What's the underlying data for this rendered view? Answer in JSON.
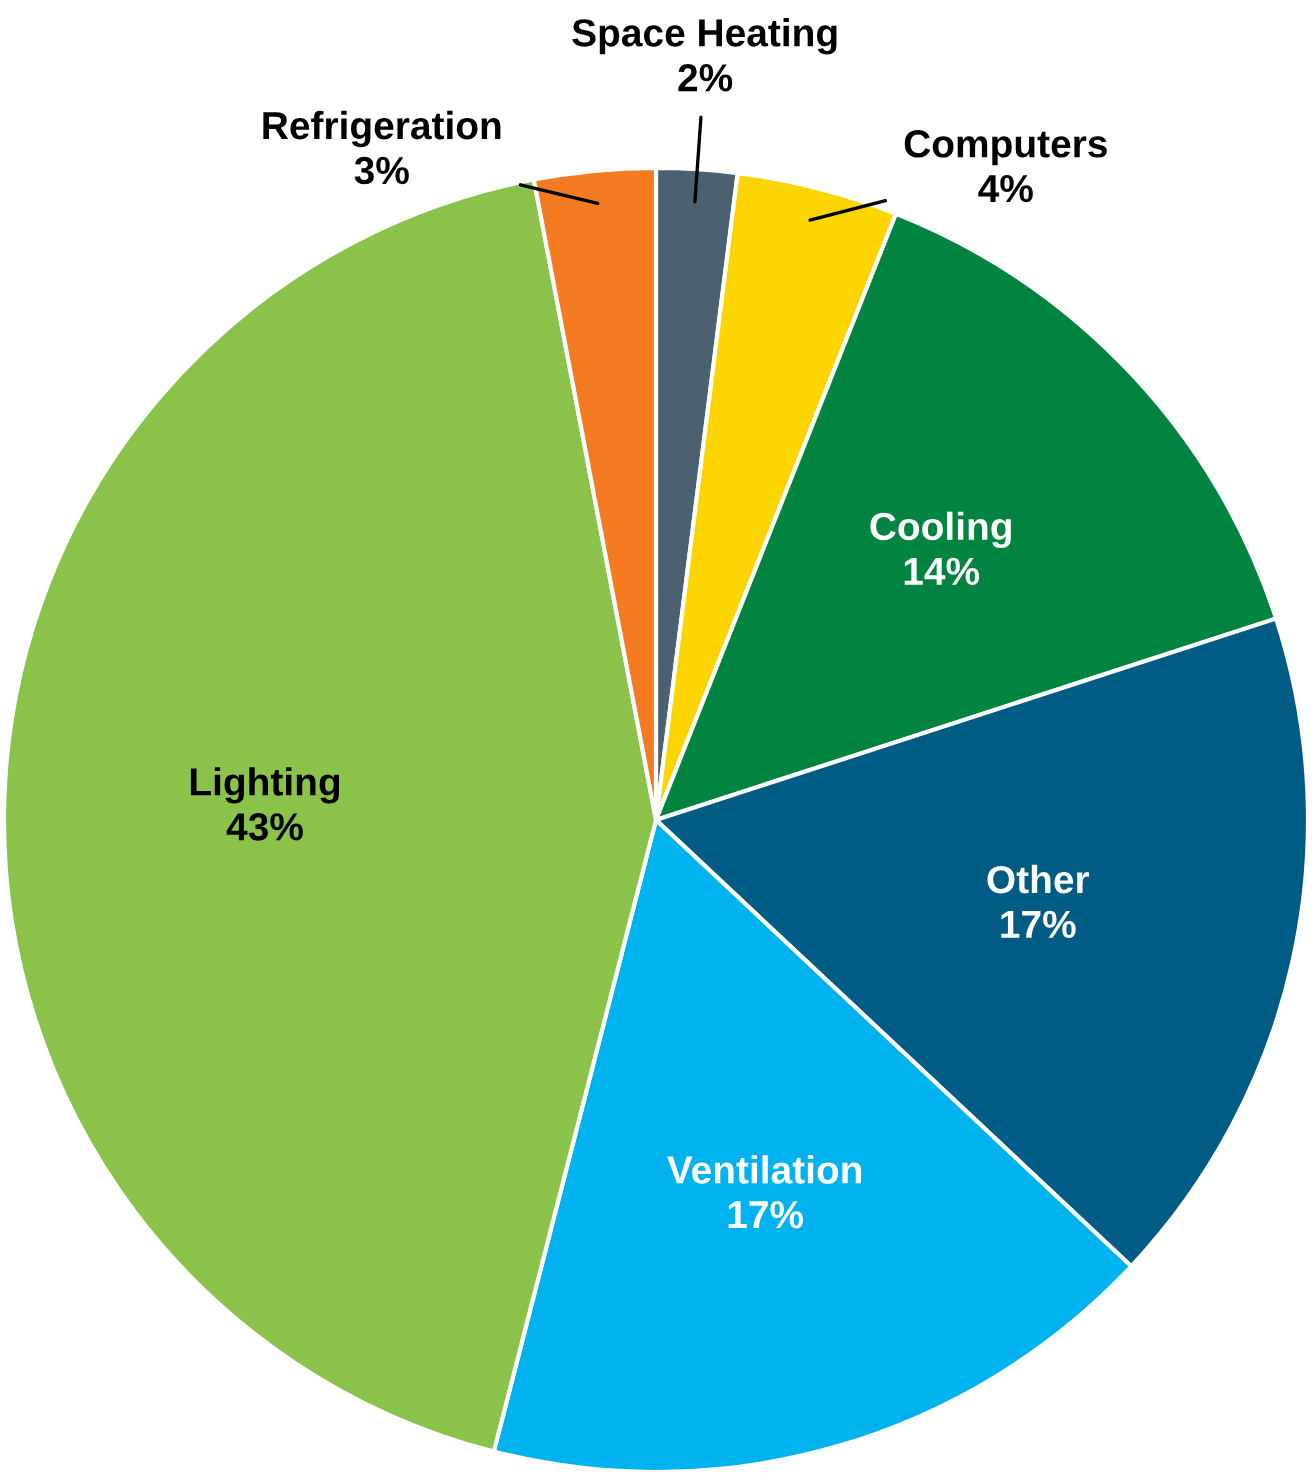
{
  "chart_data": {
    "type": "pie",
    "categories": [
      "Space Heating",
      "Computers",
      "Cooling",
      "Other",
      "Ventilation",
      "Lighting",
      "Refrigeration"
    ],
    "values": [
      2,
      4,
      14,
      17,
      17,
      43,
      3
    ],
    "value_labels": [
      "2%",
      "4%",
      "14%",
      "17%",
      "17%",
      "43%",
      "3%"
    ],
    "colors": [
      "#4b6070",
      "#fcd400",
      "#00843f",
      "#005b85",
      "#00b3ee",
      "#8bc34a",
      "#f47b22"
    ]
  }
}
